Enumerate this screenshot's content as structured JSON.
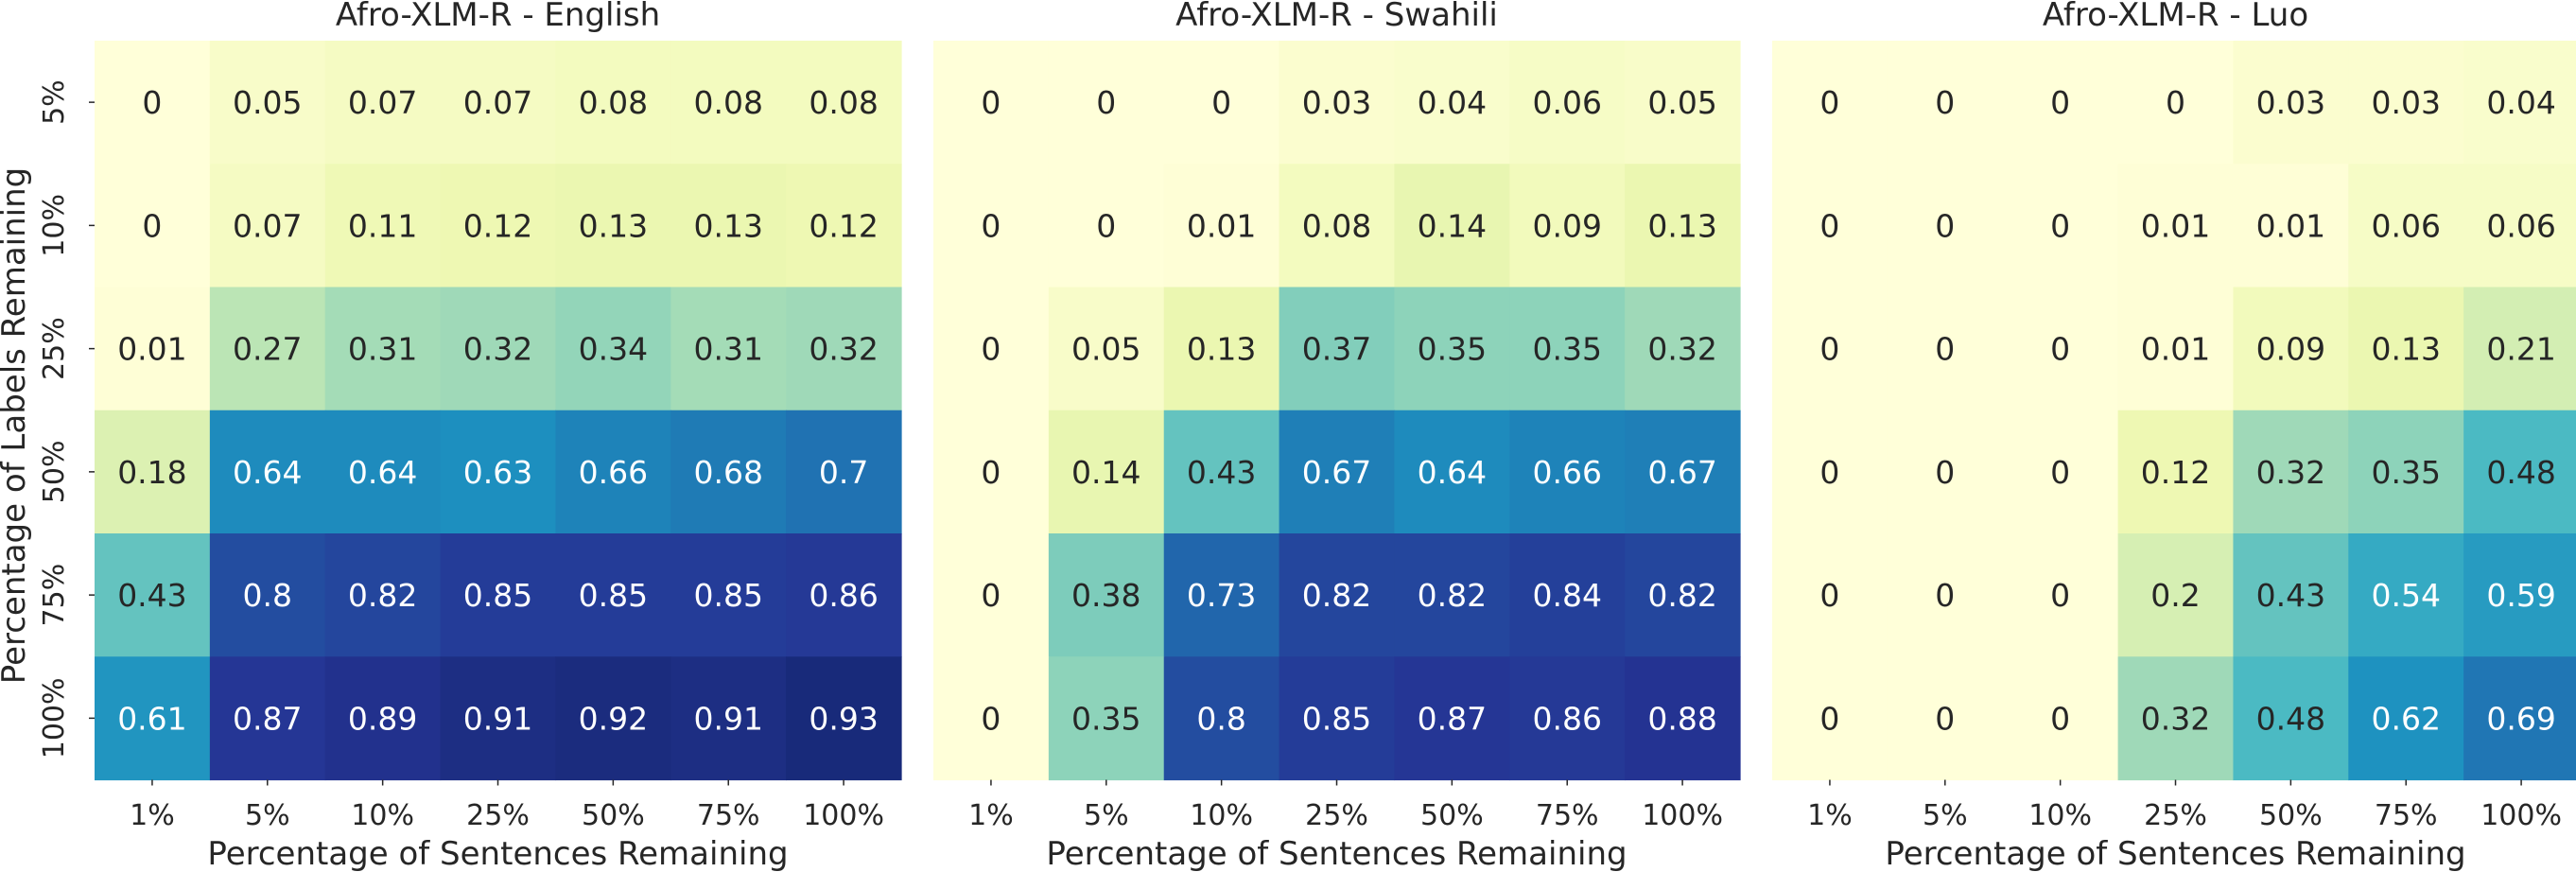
{
  "figure": {
    "ylabel": "Percentage of Labels Remaining",
    "colormap": "YlGnBu",
    "vmin": 0.0,
    "vmax": 1.0
  },
  "chart_data": [
    {
      "type": "heatmap",
      "title": "Afro-XLM-R - English",
      "xlabel": "Percentage of Sentences Remaining",
      "ylabel": "Percentage of Labels Remaining",
      "x": [
        "1%",
        "5%",
        "10%",
        "25%",
        "50%",
        "75%",
        "100%"
      ],
      "y": [
        "5%",
        "10%",
        "25%",
        "50%",
        "75%",
        "100%"
      ],
      "values": [
        [
          0,
          0.05,
          0.07,
          0.07,
          0.08,
          0.08,
          0.08
        ],
        [
          0,
          0.07,
          0.11,
          0.12,
          0.13,
          0.13,
          0.12
        ],
        [
          0.01,
          0.27,
          0.31,
          0.32,
          0.34,
          0.31,
          0.32
        ],
        [
          0.18,
          0.64,
          0.64,
          0.63,
          0.66,
          0.68,
          0.7
        ],
        [
          0.43,
          0.8,
          0.82,
          0.85,
          0.85,
          0.85,
          0.86
        ],
        [
          0.61,
          0.87,
          0.89,
          0.91,
          0.92,
          0.91,
          0.93
        ]
      ]
    },
    {
      "type": "heatmap",
      "title": "Afro-XLM-R - Swahili",
      "xlabel": "Percentage of Sentences Remaining",
      "x": [
        "1%",
        "5%",
        "10%",
        "25%",
        "50%",
        "75%",
        "100%"
      ],
      "y": [
        "5%",
        "10%",
        "25%",
        "50%",
        "75%",
        "100%"
      ],
      "values": [
        [
          0,
          0,
          0,
          0.03,
          0.04,
          0.06,
          0.05
        ],
        [
          0,
          0,
          0.01,
          0.08,
          0.14,
          0.09,
          0.13
        ],
        [
          0,
          0.05,
          0.13,
          0.37,
          0.35,
          0.35,
          0.32
        ],
        [
          0,
          0.14,
          0.43,
          0.67,
          0.64,
          0.66,
          0.67
        ],
        [
          0,
          0.38,
          0.73,
          0.82,
          0.82,
          0.84,
          0.82
        ],
        [
          0,
          0.35,
          0.8,
          0.85,
          0.87,
          0.86,
          0.88
        ]
      ]
    },
    {
      "type": "heatmap",
      "title": "Afro-XLM-R - Luo",
      "xlabel": "Percentage of Sentences Remaining",
      "x": [
        "1%",
        "5%",
        "10%",
        "25%",
        "50%",
        "75%",
        "100%"
      ],
      "y": [
        "5%",
        "10%",
        "25%",
        "50%",
        "75%",
        "100%"
      ],
      "values": [
        [
          0,
          0,
          0,
          0,
          0.03,
          0.03,
          0.04
        ],
        [
          0,
          0,
          0,
          0.01,
          0.01,
          0.06,
          0.06
        ],
        [
          0,
          0,
          0,
          0.01,
          0.09,
          0.13,
          0.21
        ],
        [
          0,
          0,
          0,
          0.12,
          0.32,
          0.35,
          0.48
        ],
        [
          0,
          0,
          0,
          0.2,
          0.43,
          0.54,
          0.59
        ],
        [
          0,
          0,
          0,
          0.32,
          0.48,
          0.62,
          0.69
        ]
      ]
    }
  ]
}
